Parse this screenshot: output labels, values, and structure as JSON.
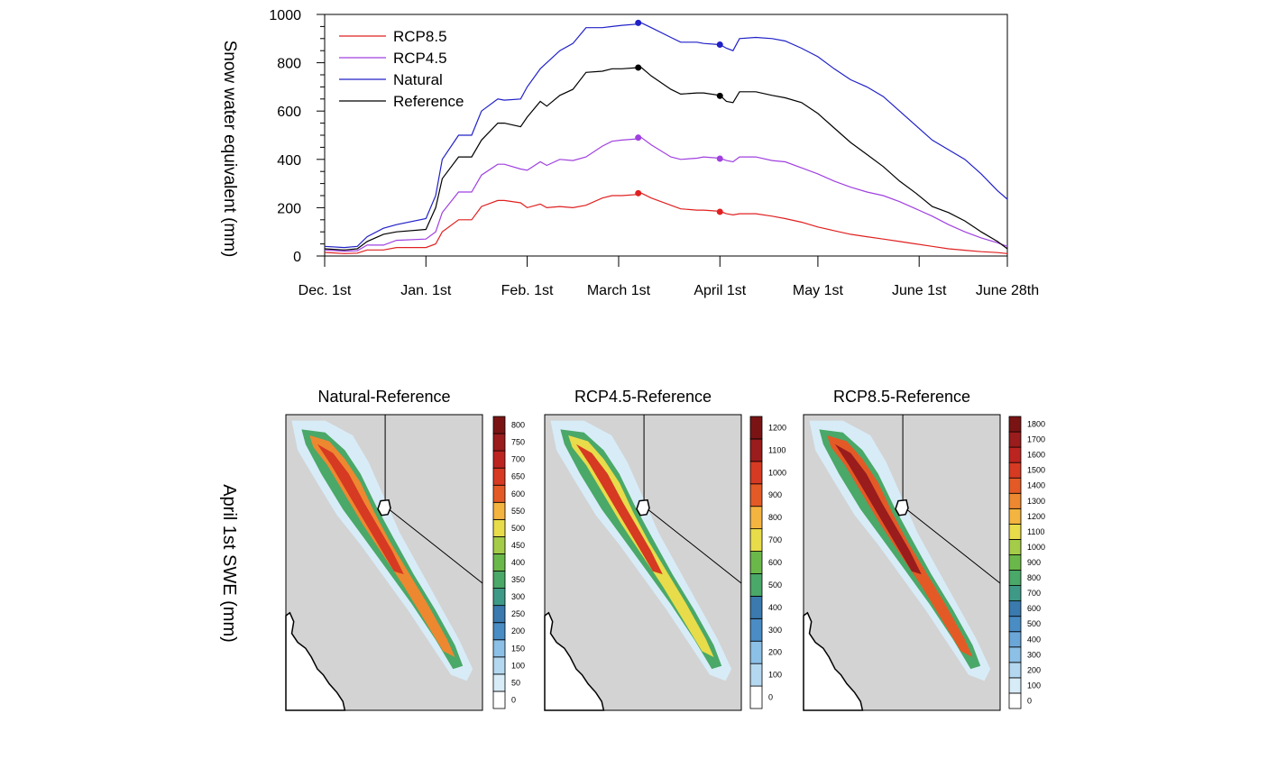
{
  "chart_data": [
    {
      "type": "line",
      "ylabel": "Snow water equivalent (mm)",
      "ylim": [
        0,
        1000
      ],
      "yticks": [
        0,
        200,
        400,
        600,
        800,
        1000
      ],
      "xlim": [
        "Dec. 1st",
        "June 28th"
      ],
      "xtick_labels": [
        "Dec. 1st",
        "Jan. 1st",
        "Feb. 1st",
        "March 1st",
        "April 1st",
        "May 1st",
        "June 1st",
        "June 28th"
      ],
      "xtick_days": [
        0,
        31,
        62,
        90,
        121,
        151,
        182,
        209
      ],
      "legend": "top-left",
      "x_days": [
        0,
        6,
        10,
        13,
        18,
        22,
        31,
        34,
        36,
        41,
        45,
        48,
        53,
        55,
        60,
        62,
        66,
        68,
        72,
        76,
        80,
        85,
        88,
        91,
        96,
        97,
        100,
        106,
        109,
        114,
        116,
        121,
        123,
        125,
        127,
        132,
        137,
        141,
        146,
        151,
        156,
        161,
        166,
        171,
        176,
        181,
        186,
        191,
        196,
        201,
        206,
        209
      ],
      "series": [
        {
          "name": "RCP8.5",
          "color": "#e02020",
          "values": [
            15,
            10,
            12,
            25,
            25,
            35,
            35,
            50,
            100,
            150,
            150,
            205,
            230,
            230,
            220,
            200,
            215,
            200,
            205,
            200,
            210,
            240,
            250,
            250,
            255,
            260,
            240,
            210,
            195,
            190,
            190,
            185,
            175,
            170,
            175,
            175,
            165,
            155,
            140,
            120,
            105,
            90,
            80,
            70,
            60,
            50,
            40,
            30,
            24,
            18,
            14,
            10
          ]
        },
        {
          "name": "RCP4.5",
          "color": "#a040e0",
          "values": [
            25,
            20,
            22,
            45,
            45,
            65,
            70,
            100,
            180,
            265,
            265,
            335,
            380,
            380,
            360,
            355,
            390,
            375,
            400,
            395,
            410,
            455,
            475,
            480,
            485,
            490,
            460,
            410,
            400,
            405,
            410,
            405,
            395,
            390,
            410,
            410,
            395,
            390,
            365,
            340,
            310,
            285,
            265,
            250,
            225,
            195,
            165,
            130,
            100,
            75,
            55,
            40
          ]
        },
        {
          "name": "Natural",
          "color": "#2020c8",
          "values": [
            40,
            35,
            40,
            80,
            115,
            130,
            155,
            250,
            400,
            500,
            500,
            600,
            650,
            645,
            650,
            700,
            775,
            800,
            850,
            880,
            945,
            945,
            950,
            955,
            960,
            965,
            945,
            905,
            885,
            885,
            880,
            875,
            860,
            850,
            900,
            905,
            900,
            890,
            860,
            825,
            775,
            730,
            700,
            660,
            600,
            540,
            480,
            440,
            400,
            340,
            270,
            235
          ]
        },
        {
          "name": "Reference",
          "color": "#000000",
          "values": [
            30,
            25,
            30,
            60,
            90,
            100,
            110,
            200,
            320,
            410,
            410,
            480,
            550,
            550,
            535,
            575,
            640,
            620,
            665,
            690,
            760,
            765,
            775,
            775,
            780,
            780,
            745,
            690,
            670,
            675,
            675,
            665,
            640,
            635,
            680,
            680,
            665,
            655,
            635,
            590,
            530,
            470,
            420,
            370,
            310,
            260,
            205,
            180,
            145,
            100,
            60,
            30
          ]
        }
      ],
      "markers": [
        {
          "day": 96,
          "values": [
            260,
            490,
            965,
            780
          ]
        },
        {
          "day": 121,
          "values": [
            183,
            403,
            875,
            663
          ]
        }
      ]
    },
    {
      "type": "heatmap",
      "row_label": "April 1st SWE (mm)",
      "panels": [
        {
          "title": "Natural-Reference",
          "colorbar_ticks": [
            0,
            50,
            100,
            150,
            200,
            250,
            300,
            350,
            400,
            450,
            500,
            550,
            600,
            650,
            700,
            750,
            800
          ]
        },
        {
          "title": "RCP4.5-Reference",
          "colorbar_ticks": [
            0,
            100,
            200,
            300,
            400,
            500,
            600,
            700,
            800,
            900,
            1000,
            1100,
            1200
          ]
        },
        {
          "title": "RCP8.5-Reference",
          "colorbar_ticks": [
            0,
            100,
            200,
            300,
            400,
            500,
            600,
            700,
            800,
            900,
            1000,
            1100,
            1200,
            1300,
            1400,
            1500,
            1600,
            1700,
            1800
          ]
        }
      ],
      "colorscale": [
        "#ffffff",
        "#d8ecf8",
        "#b4d8f0",
        "#8cc0e6",
        "#6aa6d8",
        "#4a8cc4",
        "#3a7aae",
        "#3e9a86",
        "#4aa868",
        "#6ab84a",
        "#a4cc48",
        "#e8dc4a",
        "#f4b440",
        "#ee8830",
        "#e45a26",
        "#d63a22",
        "#bc2420",
        "#9a1c1c",
        "#7a1414"
      ],
      "map_fill": "#d3d3d3"
    }
  ]
}
